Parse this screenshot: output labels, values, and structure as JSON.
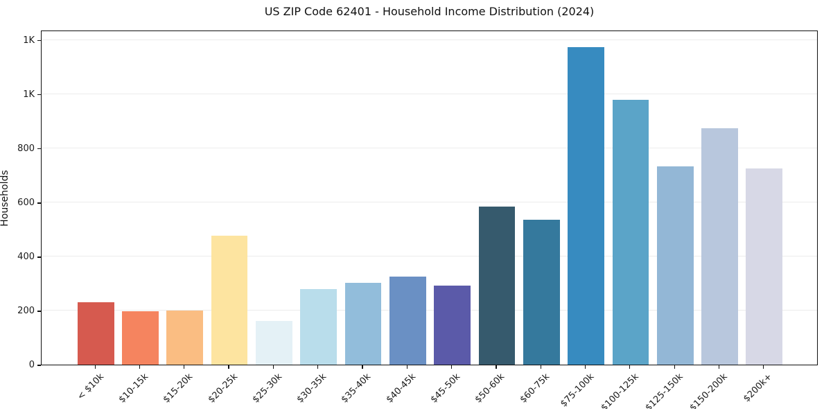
{
  "chart_data": {
    "type": "bar",
    "title": "US ZIP Code 62401 - Household Income Distribution (2024)",
    "xlabel": "",
    "ylabel": "Households",
    "categories": [
      "< $10k",
      "$10-15k",
      "$15-20k",
      "$20-25k",
      "$25-30k",
      "$30-35k",
      "$35-40k",
      "$40-45k",
      "$45-50k",
      "$50-60k",
      "$60-75k",
      "$75-100k",
      "$100-125k",
      "$125-150k",
      "$150-200k",
      "$200k+"
    ],
    "values": [
      232,
      198,
      201,
      476,
      162,
      279,
      303,
      326,
      293,
      584,
      536,
      1175,
      978,
      733,
      873,
      725
    ],
    "bar_colors": [
      "#d65a4f",
      "#f5845f",
      "#fabd82",
      "#fde4a0",
      "#e4f1f6",
      "#b9ddeb",
      "#92bddb",
      "#6a90c4",
      "#5b5aa9",
      "#365a6d",
      "#35799d",
      "#378bc0",
      "#5ba4c8",
      "#93b7d6",
      "#b8c7dd",
      "#d7d8e6"
    ],
    "ylim": [
      0,
      1238
    ],
    "yticks": {
      "values": [
        0,
        200,
        400,
        600,
        800,
        1000,
        1200
      ],
      "labels": [
        "0",
        "200",
        "400",
        "600",
        "800",
        "1K",
        "1K"
      ]
    },
    "grid": true,
    "legend": "none"
  }
}
